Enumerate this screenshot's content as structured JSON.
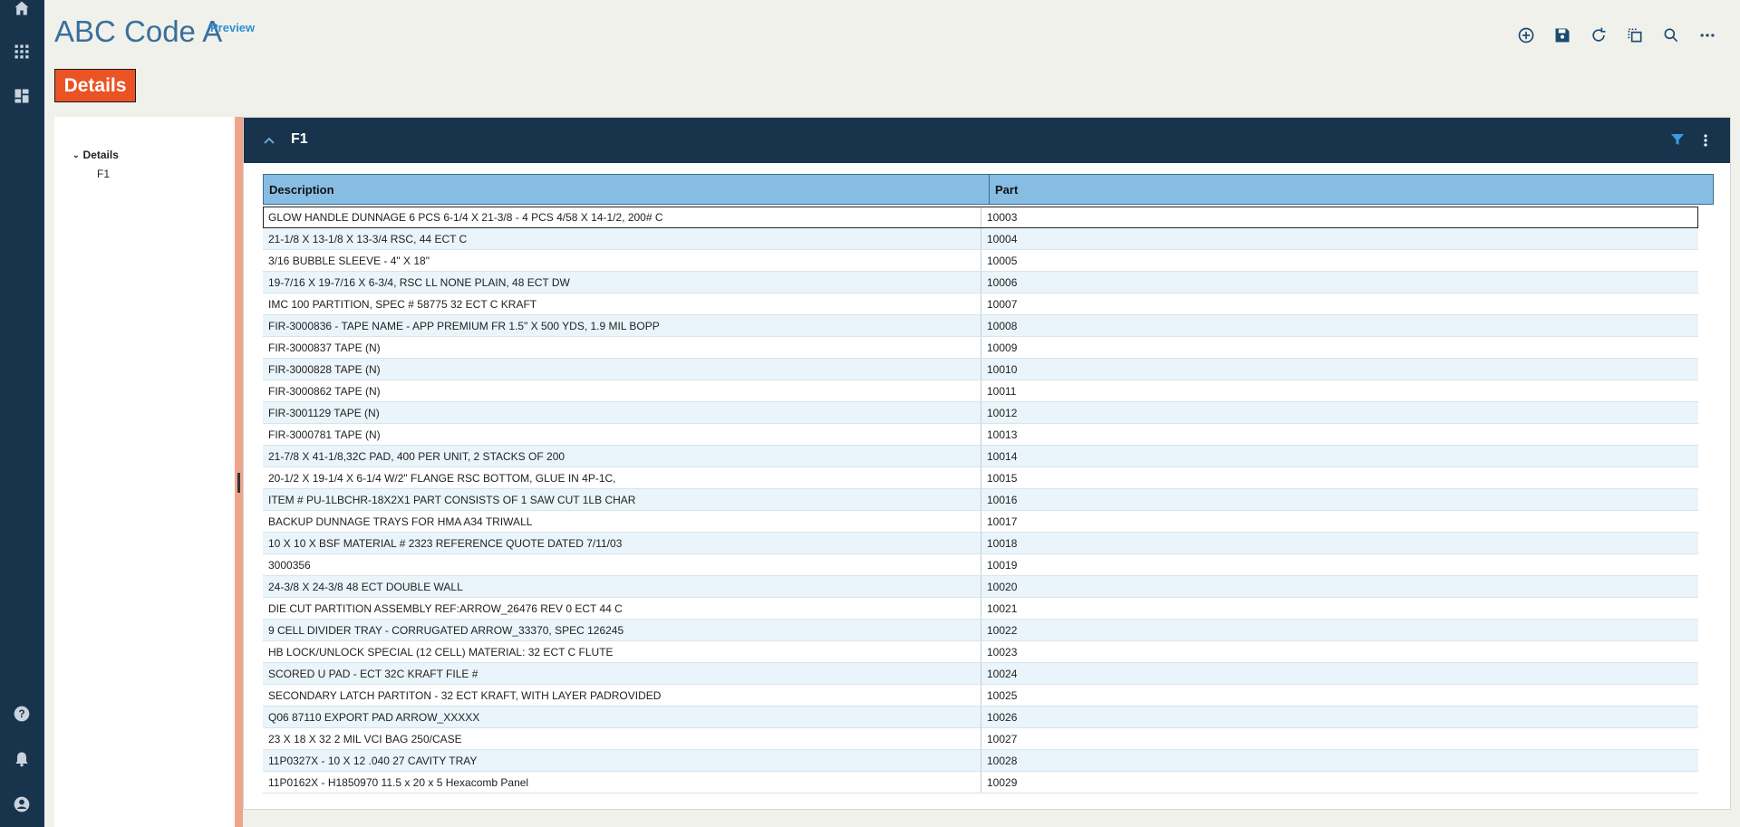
{
  "app": {
    "title": "ABC Code A",
    "preview_label": "Preview",
    "details_button": "Details"
  },
  "rail": {
    "top_icons": [
      "home-icon",
      "apps-grid-icon",
      "dashboard-icon"
    ],
    "bottom_icons": [
      "help-icon",
      "bell-icon",
      "user-icon"
    ]
  },
  "toolbar": {
    "icons": [
      "add-circle-icon",
      "save-icon",
      "refresh-icon",
      "copy-icon",
      "search-icon",
      "more-horizontal-icon"
    ]
  },
  "nav": {
    "root_label": "Details",
    "child_label": "F1"
  },
  "panel": {
    "title": "F1"
  },
  "grid": {
    "columns": [
      "Description",
      "Part"
    ],
    "rows": [
      {
        "description": "GLOW HANDLE DUNNAGE 6 PCS 6-1/4 X 21-3/8 - 4 PCS 4/58 X 14-1/2, 200# C",
        "part": "10003"
      },
      {
        "description": "21-1/8 X 13-1/8 X 13-3/4 RSC, 44 ECT C",
        "part": "10004"
      },
      {
        "description": "3/16 BUBBLE SLEEVE - 4\" X 18\"",
        "part": "10005"
      },
      {
        "description": "19-7/16 X 19-7/16 X 6-3/4, RSC LL NONE PLAIN, 48 ECT DW",
        "part": "10006"
      },
      {
        "description": "IMC 100 PARTITION, SPEC # 58775 32 ECT C KRAFT",
        "part": "10007"
      },
      {
        "description": "FIR-3000836 - TAPE NAME - APP PREMIUM FR 1.5\" X 500 YDS, 1.9 MIL BOPP",
        "part": "10008"
      },
      {
        "description": "FIR-3000837 TAPE (N)",
        "part": "10009"
      },
      {
        "description": "FIR-3000828 TAPE (N)",
        "part": "10010"
      },
      {
        "description": "FIR-3000862 TAPE (N)",
        "part": "10011"
      },
      {
        "description": "FIR-3001129 TAPE (N)",
        "part": "10012"
      },
      {
        "description": "FIR-3000781 TAPE (N)",
        "part": "10013"
      },
      {
        "description": "21-7/8 X 41-1/8,32C PAD, 400 PER UNIT, 2 STACKS OF 200",
        "part": "10014"
      },
      {
        "description": "20-1/2 X 19-1/4 X 6-1/4 W/2\" FLANGE RSC BOTTOM, GLUE IN 4P-1C,",
        "part": "10015"
      },
      {
        "description": "ITEM # PU-1LBCHR-18X2X1 PART CONSISTS OF 1 SAW CUT 1LB CHAR",
        "part": "10016"
      },
      {
        "description": "BACKUP DUNNAGE TRAYS FOR HMA A34 TRIWALL",
        "part": "10017"
      },
      {
        "description": "10 X 10 X BSF MATERIAL # 2323 REFERENCE QUOTE DATED 7/11/03",
        "part": "10018"
      },
      {
        "description": "3000356",
        "part": "10019"
      },
      {
        "description": "24-3/8 X 24-3/8 48 ECT DOUBLE WALL",
        "part": "10020"
      },
      {
        "description": "DIE CUT PARTITION ASSEMBLY REF:ARROW_26476 REV 0 ECT 44 C",
        "part": "10021"
      },
      {
        "description": "9 CELL DIVIDER TRAY - CORRUGATED ARROW_33370, SPEC 126245",
        "part": "10022"
      },
      {
        "description": "HB LOCK/UNLOCK SPECIAL (12 CELL) MATERIAL: 32 ECT C FLUTE",
        "part": "10023"
      },
      {
        "description": "SCORED U PAD - ECT 32C KRAFT FILE #",
        "part": "10024"
      },
      {
        "description": "SECONDARY LATCH PARTITON - 32 ECT KRAFT, WITH LAYER PADROVIDED",
        "part": "10025"
      },
      {
        "description": "Q06 87110 EXPORT PAD ARROW_XXXXX",
        "part": "10026"
      },
      {
        "description": "23 X 18 X 32 2 MIL VCI BAG 250/CASE",
        "part": "10027"
      },
      {
        "description": "11P0327X - 10 X 12 .040 27 CAVITY TRAY",
        "part": "10028"
      },
      {
        "description": "11P0162X - H1850970 11.5 x 20 x 5 Hexacomb Panel",
        "part": "10029"
      }
    ]
  },
  "colors": {
    "rail": "#17344c",
    "accent": "#ea5323",
    "grid_header": "#88bde3"
  }
}
